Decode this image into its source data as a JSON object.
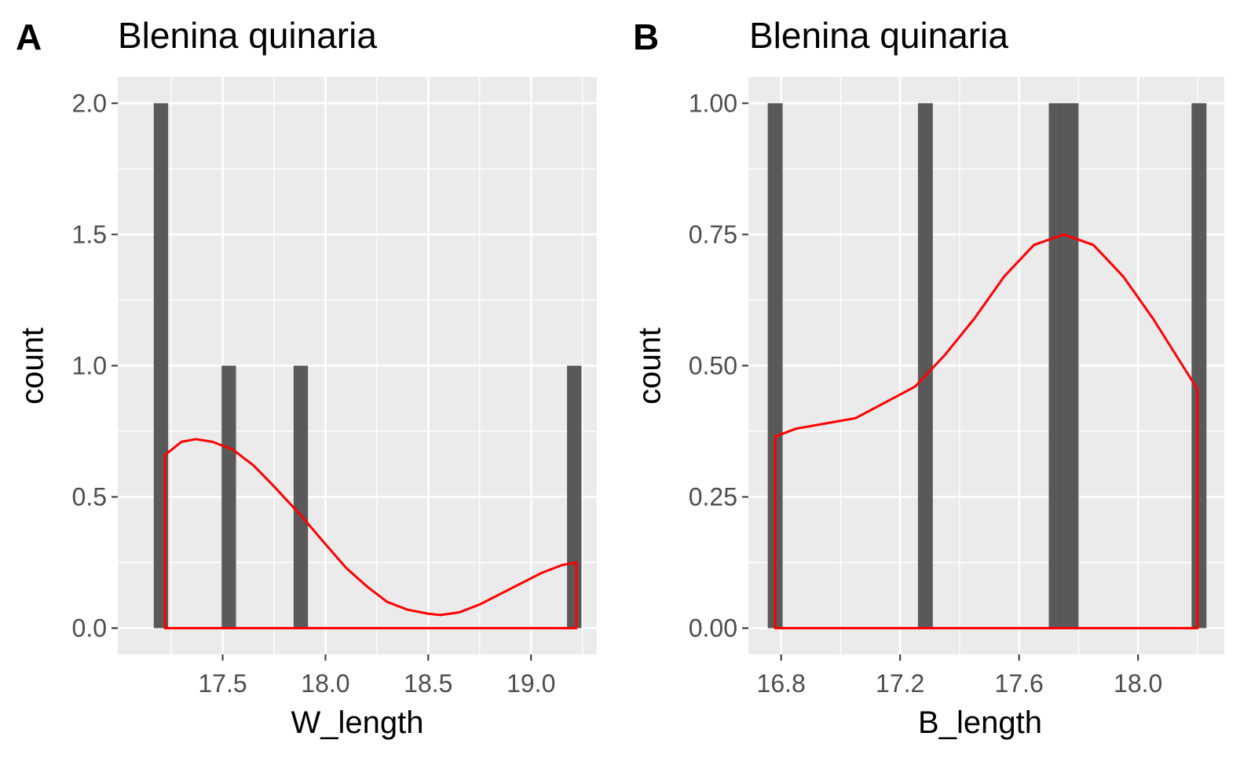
{
  "chart_data": [
    {
      "type": "bar",
      "panel_label": "A",
      "title": "Blenina quinaria",
      "xlabel": "W_length",
      "ylabel": "count",
      "xlim": [
        16.99,
        19.32
      ],
      "ylim": [
        -0.1,
        2.1
      ],
      "xticks": [
        17.5,
        18.0,
        18.5,
        19.0
      ],
      "xtick_labels": [
        "17.5",
        "18.0",
        "18.5",
        "19.0"
      ],
      "yticks": [
        0.0,
        0.5,
        1.0,
        1.5,
        2.0
      ],
      "ytick_labels": [
        "0.0",
        "0.5",
        "1.0",
        "1.5",
        "2.0"
      ],
      "grid": true,
      "bar_width": 0.07,
      "bars": [
        {
          "x": 17.2,
          "count": 2
        },
        {
          "x": 17.53,
          "count": 1
        },
        {
          "x": 17.88,
          "count": 1
        },
        {
          "x": 19.21,
          "count": 1
        }
      ],
      "density_color": "#ff0000",
      "bar_color": "#595959",
      "density": [
        [
          17.22,
          0.66
        ],
        [
          17.3,
          0.71
        ],
        [
          17.37,
          0.72
        ],
        [
          17.45,
          0.71
        ],
        [
          17.55,
          0.68
        ],
        [
          17.65,
          0.62
        ],
        [
          17.75,
          0.54
        ],
        [
          17.88,
          0.43
        ],
        [
          18.0,
          0.32
        ],
        [
          18.1,
          0.23
        ],
        [
          18.2,
          0.16
        ],
        [
          18.3,
          0.1
        ],
        [
          18.4,
          0.07
        ],
        [
          18.5,
          0.055
        ],
        [
          18.56,
          0.05
        ],
        [
          18.65,
          0.06
        ],
        [
          18.75,
          0.09
        ],
        [
          18.85,
          0.13
        ],
        [
          18.95,
          0.17
        ],
        [
          19.05,
          0.21
        ],
        [
          19.15,
          0.24
        ],
        [
          19.22,
          0.25
        ]
      ]
    },
    {
      "type": "bar",
      "panel_label": "B",
      "title": "Blenina quinaria",
      "xlabel": "B_length",
      "ylabel": "count",
      "xlim": [
        16.69,
        18.29
      ],
      "ylim": [
        -0.05,
        1.05
      ],
      "xticks": [
        16.8,
        17.2,
        17.6,
        18.0
      ],
      "xtick_labels": [
        "16.8",
        "17.2",
        "17.6",
        "18.0"
      ],
      "yticks": [
        0.0,
        0.25,
        0.5,
        0.75,
        1.0
      ],
      "ytick_labels": [
        "0.00",
        "0.25",
        "0.50",
        "0.75",
        "1.00"
      ],
      "grid": true,
      "bar_width": 0.05,
      "bars": [
        {
          "x": 16.78,
          "count": 1
        },
        {
          "x": 17.285,
          "count": 1
        },
        {
          "x": 17.725,
          "count": 1
        },
        {
          "x": 17.775,
          "count": 1
        },
        {
          "x": 18.205,
          "count": 1
        }
      ],
      "density_color": "#ff0000",
      "bar_color": "#595959",
      "density": [
        [
          16.78,
          0.365
        ],
        [
          16.85,
          0.38
        ],
        [
          16.95,
          0.39
        ],
        [
          17.05,
          0.4
        ],
        [
          17.15,
          0.43
        ],
        [
          17.25,
          0.46
        ],
        [
          17.35,
          0.52
        ],
        [
          17.45,
          0.59
        ],
        [
          17.55,
          0.67
        ],
        [
          17.65,
          0.73
        ],
        [
          17.75,
          0.75
        ],
        [
          17.85,
          0.73
        ],
        [
          17.95,
          0.67
        ],
        [
          18.05,
          0.59
        ],
        [
          18.15,
          0.5
        ],
        [
          18.2,
          0.455
        ]
      ]
    }
  ]
}
